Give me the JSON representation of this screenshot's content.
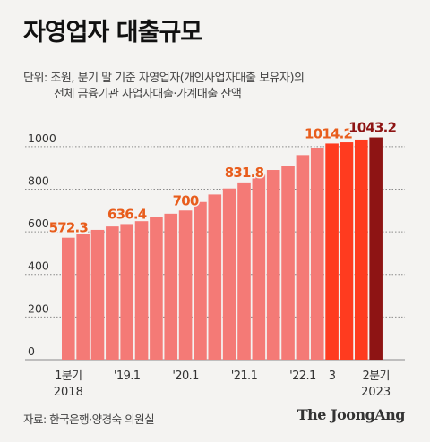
{
  "header": {
    "title": "자영업자 대출규모",
    "subtitle_line1": "단위: 조원, 분기 말 기준 자영업자(개인사업자대출 보유자)의",
    "subtitle_line2": "전체 금융기관 사업자대출·가계대출 잔액"
  },
  "footer": {
    "source": "자료: 한국은행·양경숙 의원실",
    "logo": "The JoongAng"
  },
  "colors": {
    "bar_light": "#f47a76",
    "bar_mid": "#ff3b1f",
    "bar_dark": "#8e1414",
    "label_orange": "#e85d1c",
    "label_dark": "#8e1414",
    "grid": "#8a8a8a"
  },
  "chart_data": {
    "type": "bar",
    "title": "자영업자 대출규모",
    "categories": [
      "2018 Q1",
      "2018 Q2",
      "2018 Q3",
      "2018 Q4",
      "2019 Q1",
      "2019 Q2",
      "2019 Q3",
      "2019 Q4",
      "2020 Q1",
      "2020 Q2",
      "2020 Q3",
      "2020 Q4",
      "2021 Q1",
      "2021 Q2",
      "2021 Q3",
      "2021 Q4",
      "2022 Q1",
      "2022 Q2",
      "2022 Q3",
      "2022 Q4",
      "2023 Q1",
      "2023 Q2"
    ],
    "values": [
      572.3,
      590,
      609,
      625,
      636.4,
      650,
      670,
      685,
      700,
      740,
      775,
      803,
      831.8,
      868,
      890,
      910,
      960,
      995,
      1014.2,
      1020,
      1033,
      1043.2
    ],
    "y_ticks": [
      "0",
      "200",
      "400",
      "600",
      "800",
      "1000"
    ],
    "ylim": [
      0,
      1100
    ],
    "grid": true,
    "x_tick_labels": [
      {
        "index": 0,
        "line1": "1분기",
        "line2": "2018"
      },
      {
        "index": 4,
        "line1": "'19.1",
        "line2": ""
      },
      {
        "index": 8,
        "line1": "'20.1",
        "line2": ""
      },
      {
        "index": 12,
        "line1": "'21.1",
        "line2": ""
      },
      {
        "index": 16,
        "line1": "'22.1",
        "line2": ""
      },
      {
        "index": 18,
        "line1": "3",
        "line2": ""
      },
      {
        "index": 21,
        "line1": "2분기",
        "line2": "2023"
      }
    ],
    "data_labels": [
      {
        "index": 0,
        "text": "572.3",
        "style": "orange"
      },
      {
        "index": 4,
        "text": "636.4",
        "style": "orange"
      },
      {
        "index": 8,
        "text": "700",
        "style": "orange"
      },
      {
        "index": 12,
        "text": "831.8",
        "style": "orange"
      },
      {
        "index": 18,
        "text": "1014.2",
        "style": "orange"
      },
      {
        "index": 21,
        "text": "1043.2",
        "style": "dark"
      }
    ]
  }
}
